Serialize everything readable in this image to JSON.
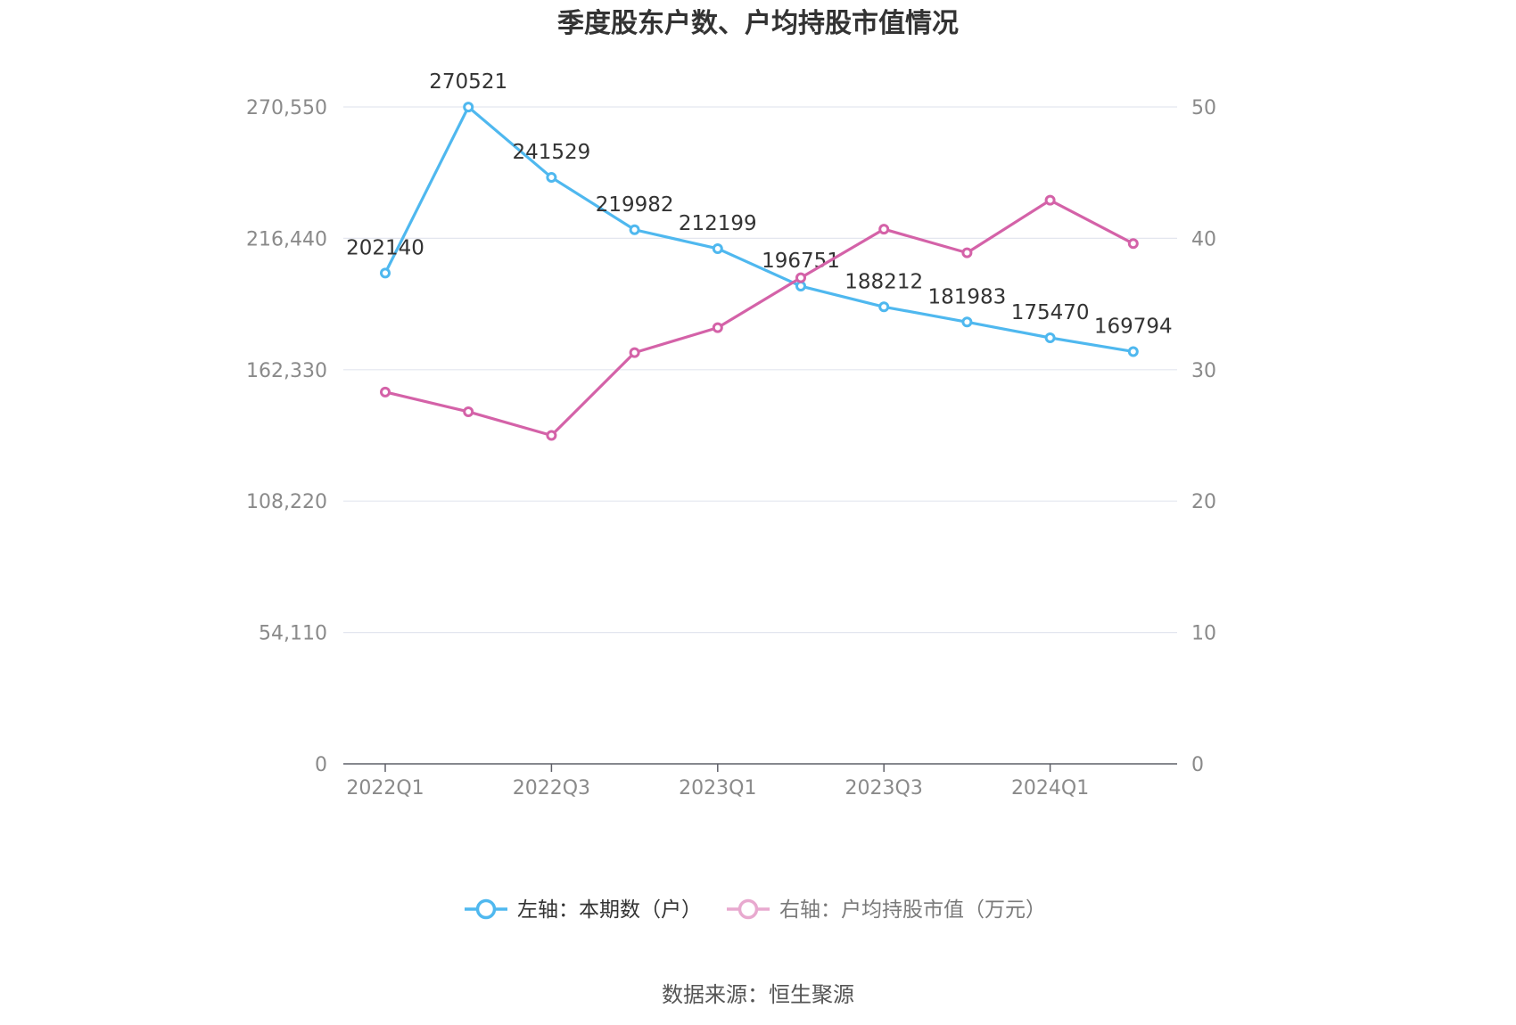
{
  "chart_data": {
    "type": "line",
    "title": "季度股东户数、户均持股市值情况",
    "categories": [
      "2022Q1",
      "2022Q2",
      "2022Q3",
      "2022Q4",
      "2023Q1",
      "2023Q2",
      "2023Q3",
      "2023Q4",
      "2024Q1",
      "2024Q2"
    ],
    "x_tick_labels": [
      "2022Q1",
      "2022Q3",
      "2023Q1",
      "2023Q3",
      "2024Q1"
    ],
    "left_axis": {
      "ticks": [
        "0",
        "54,110",
        "108,220",
        "162,330",
        "216,440",
        "270,550"
      ],
      "ylim": [
        0,
        270550
      ]
    },
    "right_axis": {
      "ticks": [
        "0",
        "10",
        "20",
        "30",
        "40",
        "50"
      ],
      "ylim": [
        0,
        50
      ]
    },
    "grid": true,
    "legend_position": "bottom",
    "series": [
      {
        "name": "左轴：本期数（户）",
        "axis": "left",
        "color": "#4fb8ef",
        "values": [
          202140,
          270521,
          241529,
          219982,
          212199,
          196751,
          188212,
          181983,
          175470,
          169794
        ],
        "labels": [
          "202140",
          "270521",
          "241529",
          "219982",
          "212199",
          "196751",
          "188212",
          "181983",
          "175470",
          "169794"
        ]
      },
      {
        "name": "右轴：户均持股市值（万元）",
        "axis": "right",
        "color": "#d462a8",
        "values": [
          28.3,
          26.8,
          25.0,
          31.3,
          33.2,
          37.0,
          40.7,
          38.9,
          42.9,
          39.6
        ]
      }
    ]
  },
  "footer": {
    "source": "数据来源：恒生聚源"
  }
}
